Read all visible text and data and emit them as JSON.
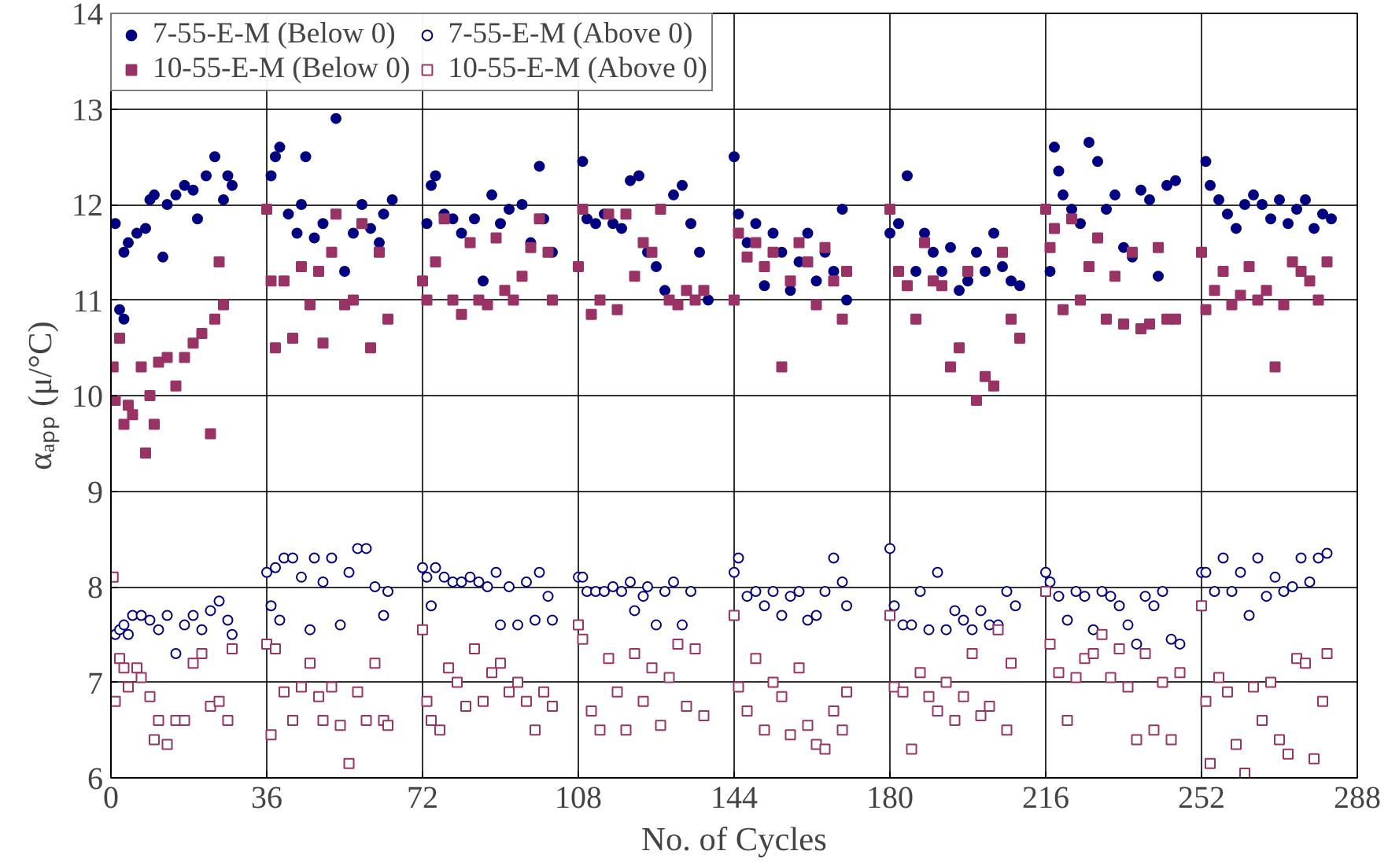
{
  "chart_data": {
    "type": "scatter",
    "xlabel": "No. of Cycles",
    "ylabel": "αₐₚₚ (μ/°C)",
    "xlim": [
      0,
      288
    ],
    "xticks": [
      0,
      36,
      72,
      108,
      144,
      180,
      216,
      252,
      288
    ],
    "ylim": [
      6,
      14
    ],
    "yticks": [
      6,
      7,
      8,
      9,
      10,
      11,
      12,
      13,
      14
    ],
    "grid": true,
    "legend": "top left",
    "series": [
      {
        "name": "7-55-E-M (Below 0)",
        "color": "#000080",
        "marker": "circle",
        "x": [
          1,
          2,
          3,
          4,
          6,
          8,
          9,
          10,
          12,
          13,
          15,
          17,
          19,
          20,
          22,
          24,
          26,
          27,
          28,
          3,
          37,
          38,
          39,
          41,
          43,
          44,
          45,
          47,
          49,
          52,
          54,
          56,
          58,
          60,
          62,
          63,
          65,
          73,
          74,
          75,
          77,
          79,
          81,
          84,
          86,
          88,
          90,
          92,
          95,
          97,
          99,
          100,
          102,
          109,
          110,
          112,
          114,
          116,
          118,
          120,
          122,
          124,
          126,
          128,
          130,
          132,
          134,
          136,
          138,
          144,
          145,
          147,
          149,
          151,
          153,
          155,
          157,
          159,
          161,
          163,
          165,
          167,
          169,
          170,
          180,
          182,
          184,
          186,
          188,
          190,
          192,
          194,
          196,
          198,
          200,
          202,
          204,
          206,
          208,
          210,
          217,
          218,
          219,
          220,
          222,
          224,
          226,
          228,
          230,
          232,
          234,
          236,
          238,
          240,
          242,
          244,
          246,
          253,
          254,
          256,
          258,
          260,
          262,
          264,
          266,
          268,
          270,
          272,
          274,
          276,
          278,
          280,
          282
        ],
        "values": [
          11.8,
          10.9,
          11.5,
          11.6,
          11.7,
          11.75,
          12.05,
          12.1,
          11.45,
          12.0,
          12.1,
          12.2,
          12.15,
          11.85,
          12.3,
          12.5,
          12.05,
          12.3,
          12.2,
          10.8,
          12.3,
          12.5,
          12.6,
          11.9,
          11.7,
          12.0,
          12.5,
          11.65,
          11.8,
          12.9,
          11.3,
          11.7,
          12.0,
          11.75,
          11.6,
          11.9,
          12.05,
          11.8,
          12.2,
          12.3,
          11.9,
          11.85,
          11.7,
          11.85,
          11.2,
          12.1,
          11.8,
          11.95,
          12.0,
          11.6,
          12.4,
          11.85,
          11.5,
          12.45,
          11.85,
          11.8,
          11.9,
          11.8,
          11.75,
          12.25,
          12.3,
          11.5,
          11.35,
          11.1,
          12.1,
          12.2,
          11.8,
          11.5,
          11.0,
          12.5,
          11.9,
          11.6,
          11.8,
          11.15,
          11.7,
          11.5,
          11.1,
          11.4,
          11.7,
          11.2,
          11.5,
          11.3,
          11.95,
          11.0,
          11.7,
          11.8,
          12.3,
          11.3,
          11.7,
          11.5,
          11.3,
          11.55,
          11.1,
          11.2,
          11.5,
          11.3,
          11.7,
          11.35,
          11.2,
          11.15,
          11.3,
          12.6,
          12.35,
          12.1,
          11.95,
          11.8,
          12.65,
          12.45,
          11.95,
          12.1,
          11.55,
          11.45,
          12.15,
          12.05,
          11.25,
          12.2,
          12.25,
          12.45,
          12.2,
          12.05,
          11.9,
          11.75,
          12.0,
          12.1,
          12.0,
          11.85,
          12.05,
          11.8,
          11.95,
          12.05,
          11.75,
          11.9,
          11.85
        ]
      },
      {
        "name": "10-55-E-M (Below 0)",
        "color": "#993366",
        "marker": "square",
        "x": [
          0.5,
          1,
          2,
          3,
          4,
          5,
          7,
          8,
          9,
          10,
          11,
          13,
          15,
          17,
          19,
          21,
          23,
          24,
          25,
          26,
          36,
          37,
          38,
          40,
          42,
          44,
          46,
          48,
          49,
          51,
          52,
          54,
          56,
          58,
          60,
          62,
          64,
          72,
          73,
          75,
          77,
          79,
          81,
          83,
          85,
          87,
          89,
          91,
          93,
          95,
          97,
          99,
          101,
          102,
          108,
          109,
          111,
          113,
          115,
          117,
          119,
          121,
          123,
          125,
          127,
          129,
          131,
          133,
          135,
          137,
          144,
          145,
          147,
          149,
          151,
          153,
          155,
          157,
          159,
          161,
          163,
          165,
          167,
          169,
          170,
          180,
          182,
          184,
          186,
          188,
          190,
          192,
          194,
          196,
          198,
          200,
          202,
          204,
          206,
          208,
          210,
          216,
          217,
          218,
          220,
          222,
          224,
          226,
          228,
          230,
          232,
          234,
          236,
          238,
          240,
          242,
          244,
          246,
          252,
          253,
          255,
          257,
          259,
          261,
          263,
          265,
          267,
          269,
          271,
          273,
          275,
          277,
          279,
          281
        ],
        "values": [
          10.3,
          9.95,
          10.6,
          9.7,
          9.9,
          9.8,
          10.3,
          9.4,
          10.0,
          9.7,
          10.35,
          10.4,
          10.1,
          10.4,
          10.55,
          10.65,
          9.6,
          10.8,
          11.4,
          10.95,
          11.95,
          11.2,
          10.5,
          11.2,
          10.6,
          11.35,
          10.95,
          11.3,
          10.55,
          11.5,
          11.9,
          10.95,
          11.0,
          11.8,
          10.5,
          11.5,
          10.8,
          11.2,
          11.0,
          11.4,
          11.85,
          11.0,
          10.85,
          11.6,
          11.0,
          10.95,
          11.65,
          11.1,
          11.0,
          11.25,
          11.55,
          11.85,
          11.5,
          11.0,
          11.35,
          11.95,
          10.85,
          11.0,
          11.9,
          10.9,
          11.9,
          11.25,
          11.6,
          11.5,
          11.95,
          11.0,
          10.95,
          11.1,
          11.0,
          11.1,
          11.0,
          11.7,
          11.45,
          11.6,
          11.35,
          11.5,
          10.3,
          11.2,
          11.6,
          11.4,
          10.95,
          11.55,
          11.2,
          10.8,
          11.3,
          11.95,
          11.3,
          11.15,
          10.8,
          11.6,
          11.2,
          11.15,
          10.3,
          10.5,
          11.3,
          9.95,
          10.2,
          10.1,
          11.5,
          10.8,
          10.6,
          11.95,
          11.55,
          11.75,
          10.9,
          11.85,
          11.0,
          11.35,
          11.65,
          10.8,
          11.25,
          10.75,
          11.5,
          10.7,
          10.75,
          11.55,
          10.8,
          10.8,
          11.5,
          10.9,
          11.1,
          11.3,
          10.95,
          11.05,
          11.35,
          11.0,
          11.1,
          10.3,
          10.95,
          11.4,
          11.3,
          11.2,
          11.0,
          11.4
        ]
      },
      {
        "name": "7-55-E-M (Above 0)",
        "color": "#000080",
        "marker": "circle open",
        "x": [
          1,
          2,
          3,
          4,
          5,
          7,
          9,
          11,
          13,
          15,
          17,
          19,
          21,
          23,
          25,
          27,
          28,
          36,
          37,
          38,
          39,
          40,
          42,
          44,
          46,
          47,
          49,
          51,
          53,
          55,
          57,
          59,
          61,
          63,
          64,
          72,
          73,
          74,
          75,
          77,
          79,
          81,
          83,
          85,
          87,
          89,
          90,
          92,
          94,
          96,
          98,
          99,
          101,
          102,
          108,
          109,
          110,
          112,
          114,
          116,
          118,
          120,
          121,
          123,
          124,
          126,
          128,
          130,
          132,
          134,
          144,
          145,
          147,
          149,
          151,
          153,
          155,
          157,
          159,
          161,
          163,
          165,
          167,
          169,
          170,
          180,
          181,
          183,
          185,
          187,
          189,
          191,
          193,
          195,
          197,
          199,
          201,
          203,
          205,
          207,
          209,
          216,
          217,
          219,
          221,
          223,
          225,
          227,
          229,
          231,
          233,
          235,
          237,
          239,
          241,
          243,
          245,
          247,
          252,
          253,
          255,
          257,
          259,
          261,
          263,
          265,
          267,
          269,
          271,
          273,
          275,
          277,
          279,
          281
        ],
        "values": [
          7.5,
          7.55,
          7.6,
          7.5,
          7.7,
          7.7,
          7.65,
          7.55,
          7.7,
          7.3,
          7.6,
          7.7,
          7.55,
          7.75,
          7.85,
          7.65,
          7.5,
          8.15,
          7.8,
          8.2,
          7.65,
          8.3,
          8.3,
          8.1,
          7.55,
          8.3,
          8.05,
          8.3,
          7.6,
          8.15,
          8.4,
          8.4,
          8.0,
          7.7,
          7.95,
          8.2,
          8.1,
          7.8,
          8.2,
          8.1,
          8.05,
          8.05,
          8.1,
          8.05,
          8.0,
          8.15,
          7.6,
          8.0,
          7.6,
          8.05,
          7.65,
          8.15,
          7.9,
          7.65,
          8.1,
          8.1,
          7.95,
          7.95,
          7.95,
          8.0,
          7.95,
          8.05,
          7.75,
          7.9,
          8.0,
          7.6,
          7.95,
          8.05,
          7.6,
          7.95,
          8.15,
          8.3,
          7.9,
          7.95,
          7.8,
          7.95,
          7.7,
          7.9,
          7.95,
          7.65,
          7.7,
          7.95,
          8.3,
          8.05,
          7.8,
          8.4,
          7.8,
          7.6,
          7.6,
          7.95,
          7.55,
          8.15,
          7.55,
          7.75,
          7.65,
          7.55,
          7.75,
          7.6,
          7.6,
          7.95,
          7.8,
          8.15,
          8.05,
          7.9,
          7.65,
          7.95,
          7.9,
          7.55,
          7.95,
          7.9,
          7.8,
          7.6,
          7.4,
          7.9,
          7.8,
          7.95,
          7.45,
          7.4,
          8.15,
          8.15,
          7.95,
          8.3,
          7.95,
          8.15,
          7.7,
          8.3,
          7.9,
          8.1,
          7.95,
          8.0,
          8.3,
          8.05,
          8.3,
          8.35
        ]
      },
      {
        "name": "10-55-E-M (Above 0)",
        "color": "#993366",
        "marker": "square open",
        "x": [
          0.5,
          1,
          2,
          3,
          4,
          6,
          7,
          9,
          10,
          11,
          13,
          15,
          17,
          19,
          21,
          23,
          25,
          27,
          28,
          36,
          37,
          38,
          40,
          42,
          44,
          46,
          48,
          49,
          51,
          53,
          55,
          57,
          59,
          61,
          63,
          64,
          72,
          73,
          74,
          76,
          78,
          80,
          82,
          84,
          86,
          88,
          90,
          92,
          94,
          96,
          98,
          100,
          102,
          108,
          109,
          111,
          113,
          115,
          117,
          119,
          121,
          123,
          125,
          127,
          129,
          131,
          133,
          135,
          137,
          144,
          145,
          147,
          149,
          151,
          153,
          155,
          157,
          159,
          161,
          163,
          165,
          167,
          169,
          170,
          180,
          181,
          183,
          185,
          187,
          189,
          191,
          193,
          195,
          197,
          199,
          201,
          203,
          205,
          207,
          208,
          216,
          217,
          219,
          221,
          223,
          225,
          227,
          229,
          231,
          233,
          235,
          237,
          239,
          241,
          243,
          245,
          247,
          252,
          253,
          254,
          256,
          258,
          260,
          262,
          264,
          266,
          268,
          270,
          272,
          274,
          276,
          278,
          280,
          281
        ],
        "values": [
          8.1,
          6.8,
          7.25,
          7.15,
          6.95,
          7.15,
          7.05,
          6.85,
          6.4,
          6.6,
          6.35,
          6.6,
          6.6,
          7.2,
          7.3,
          6.75,
          6.8,
          6.6,
          7.35,
          7.4,
          6.45,
          7.35,
          6.9,
          6.6,
          6.95,
          7.2,
          6.85,
          6.6,
          6.95,
          6.55,
          6.15,
          6.9,
          6.6,
          7.2,
          6.6,
          6.55,
          7.55,
          6.8,
          6.6,
          6.5,
          7.15,
          7.0,
          6.75,
          7.35,
          6.8,
          7.1,
          7.2,
          6.9,
          7.0,
          6.8,
          6.5,
          6.9,
          6.75,
          7.6,
          7.45,
          6.7,
          6.5,
          7.25,
          6.9,
          6.5,
          7.3,
          6.8,
          7.15,
          6.55,
          7.05,
          7.4,
          6.75,
          7.35,
          6.65,
          7.7,
          6.95,
          6.7,
          7.25,
          6.5,
          7.0,
          6.85,
          6.45,
          7.15,
          6.55,
          6.35,
          6.3,
          6.7,
          6.5,
          6.9,
          7.7,
          6.95,
          6.9,
          6.3,
          7.1,
          6.85,
          6.7,
          7.0,
          6.6,
          6.85,
          7.3,
          6.65,
          6.75,
          7.55,
          6.5,
          7.2,
          7.95,
          7.4,
          7.1,
          6.6,
          7.05,
          7.25,
          7.3,
          7.5,
          7.05,
          7.35,
          6.95,
          6.4,
          7.3,
          6.5,
          7.0,
          6.4,
          7.1,
          7.8,
          6.8,
          6.15,
          7.05,
          6.9,
          6.35,
          6.05,
          6.95,
          6.6,
          7.0,
          6.4,
          6.25,
          7.25,
          7.2,
          6.2,
          6.8,
          7.3
        ]
      }
    ]
  }
}
